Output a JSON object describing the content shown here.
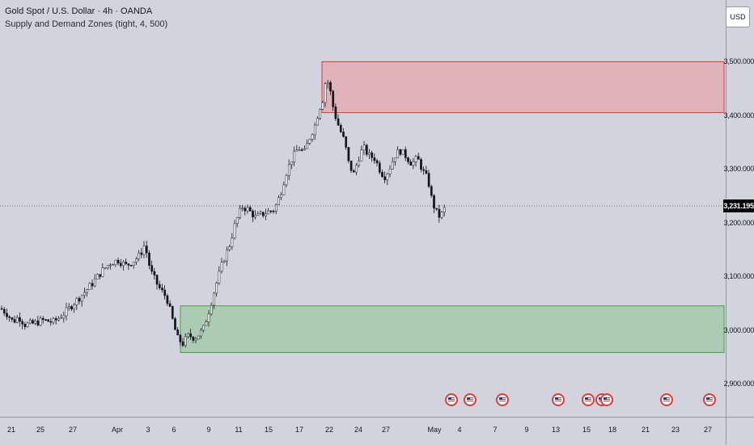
{
  "legend": {
    "title": "Gold Spot / U.S. Dollar · 4h · OANDA",
    "indicator": "Supply and Demand Zones (tight, 4, 500)"
  },
  "currency": "USD",
  "price_scale": {
    "labels": [
      "3,500.000",
      "3,400.000",
      "3,300.000",
      "3,200.000",
      "3,100.000",
      "3,000.000",
      "2,900.000"
    ],
    "values": [
      3500,
      3400,
      3300,
      3200,
      3100,
      3000,
      2900
    ],
    "current_price": 3231.195,
    "current_price_label": "3,231.195"
  },
  "time_scale": {
    "labels": [
      "21",
      "25",
      "27",
      "Apr",
      "3",
      "6",
      "9",
      "11",
      "15",
      "17",
      "22",
      "24",
      "27",
      "May",
      "4",
      "7",
      "9",
      "13",
      "15",
      "18",
      "21",
      "23",
      "27"
    ]
  },
  "colors": {
    "bull_candle": "#ffffff",
    "bear_candle": "#131722",
    "supply_fill": "#f28b8b",
    "supply_border": "#e53935",
    "demand_fill": "#8cc48f",
    "demand_border": "#43a047"
  },
  "zones": {
    "supply": {
      "top": 3500,
      "bottom": 3405,
      "start_label": "21"
    },
    "demand": {
      "top": 3045,
      "bottom": 2958,
      "start_label": "6"
    }
  },
  "event_icon": "us-flag-icon",
  "event_count": 10,
  "chart_data": {
    "type": "candlestick",
    "title": "Gold Spot / U.S. Dollar · 4h · OANDA",
    "price_range": [
      2840,
      3560
    ],
    "close_path": [
      [
        0,
        3040
      ],
      [
        8,
        3030
      ],
      [
        15,
        3015
      ],
      [
        22,
        3025
      ],
      [
        30,
        3010
      ],
      [
        40,
        3012
      ],
      [
        52,
        3018
      ],
      [
        65,
        3015
      ],
      [
        78,
        3030
      ],
      [
        90,
        3050
      ],
      [
        100,
        3065
      ],
      [
        112,
        3085
      ],
      [
        125,
        3110
      ],
      [
        135,
        3125
      ],
      [
        145,
        3130
      ],
      [
        155,
        3120
      ],
      [
        165,
        3130
      ],
      [
        172,
        3140
      ],
      [
        178,
        3160
      ],
      [
        185,
        3110
      ],
      [
        195,
        3080
      ],
      [
        205,
        3060
      ],
      [
        212,
        3020
      ],
      [
        218,
        2985
      ],
      [
        225,
        2975
      ],
      [
        232,
        2990
      ],
      [
        240,
        2985
      ],
      [
        250,
        3000
      ],
      [
        258,
        3040
      ],
      [
        265,
        3080
      ],
      [
        275,
        3130
      ],
      [
        283,
        3160
      ],
      [
        290,
        3200
      ],
      [
        298,
        3230
      ],
      [
        305,
        3225
      ],
      [
        315,
        3210
      ],
      [
        322,
        3215
      ],
      [
        330,
        3220
      ],
      [
        338,
        3225
      ],
      [
        345,
        3250
      ],
      [
        352,
        3290
      ],
      [
        360,
        3320
      ],
      [
        368,
        3340
      ],
      [
        375,
        3330
      ],
      [
        382,
        3360
      ],
      [
        388,
        3380
      ],
      [
        393,
        3410
      ],
      [
        398,
        3430
      ],
      [
        402,
        3470
      ],
      [
        406,
        3455
      ],
      [
        410,
        3420
      ],
      [
        415,
        3390
      ],
      [
        420,
        3370
      ],
      [
        425,
        3350
      ],
      [
        430,
        3310
      ],
      [
        436,
        3290
      ],
      [
        442,
        3320
      ],
      [
        448,
        3340
      ],
      [
        455,
        3325
      ],
      [
        462,
        3320
      ],
      [
        468,
        3300
      ],
      [
        474,
        3285
      ],
      [
        480,
        3300
      ],
      [
        487,
        3325
      ],
      [
        493,
        3335
      ],
      [
        500,
        3325
      ],
      [
        508,
        3310
      ],
      [
        515,
        3320
      ],
      [
        522,
        3295
      ],
      [
        528,
        3280
      ],
      [
        533,
        3240
      ],
      [
        538,
        3220
      ],
      [
        543,
        3210
      ],
      [
        548,
        3225
      ],
      [
        551,
        3231
      ]
    ]
  }
}
